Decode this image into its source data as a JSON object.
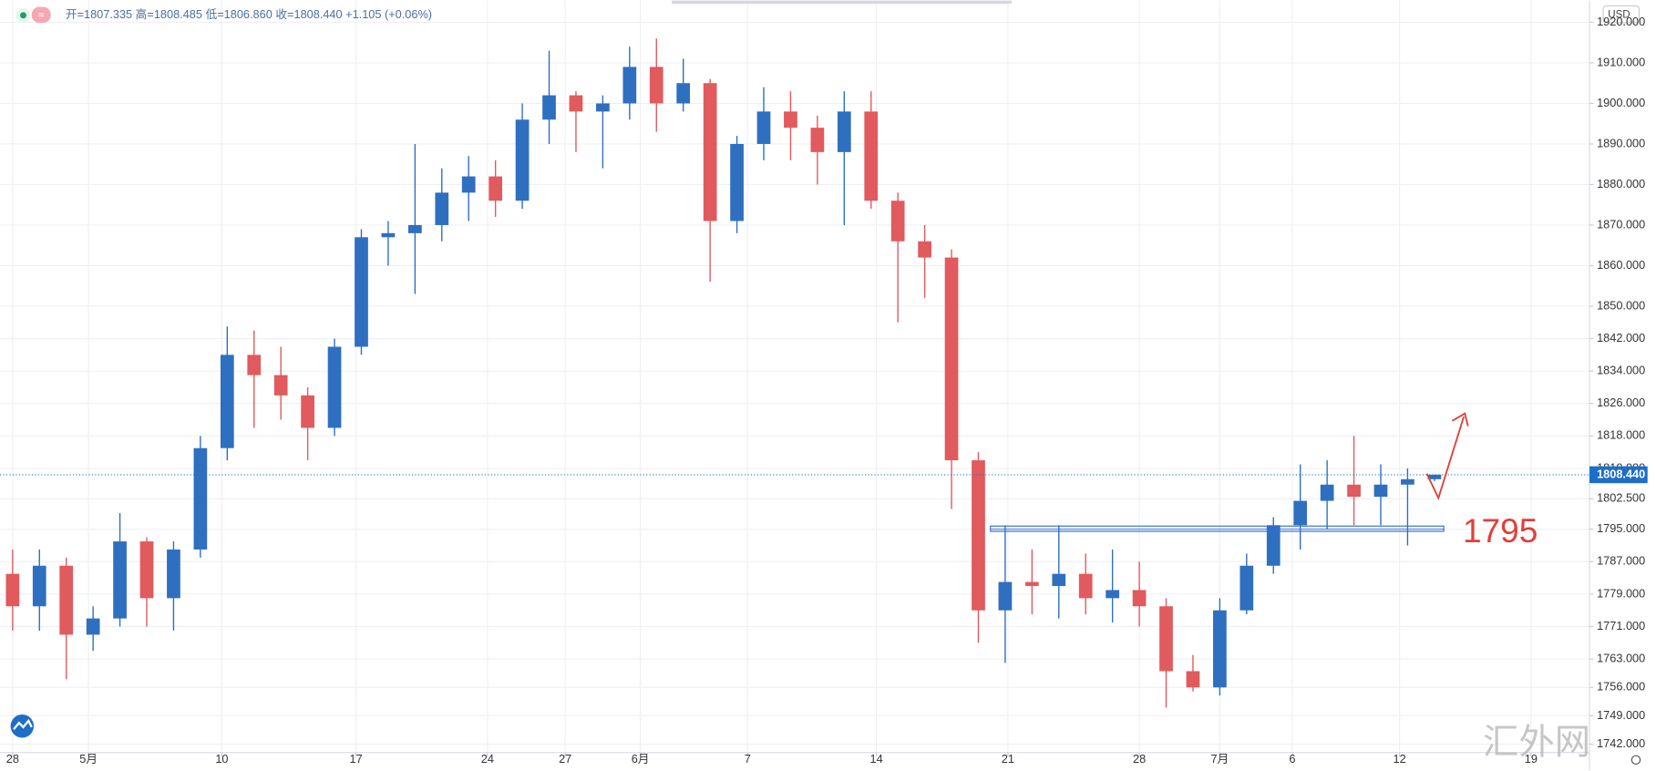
{
  "chart_data": {
    "type": "candlestick",
    "header": "开=1807.335 高=1808.485 低=1806.860 收=1808.440 +1.105 (+0.06%)",
    "currency": "USD",
    "watermark": "汇外网",
    "x": [
      0,
      1,
      2,
      3,
      4,
      5,
      6,
      7,
      8,
      9,
      10,
      11,
      12,
      13,
      14,
      15,
      16,
      17,
      18,
      19,
      20,
      21,
      22,
      23,
      24,
      25,
      26,
      27,
      28,
      29,
      30,
      31,
      32,
      33,
      34,
      35,
      36,
      37,
      38,
      39,
      40,
      41,
      42,
      43,
      44,
      45,
      46,
      47,
      48,
      49,
      50,
      51,
      52,
      53
    ],
    "open": [
      1784,
      1776,
      1786,
      1769,
      1773,
      1792,
      1778,
      1790,
      1815,
      1838,
      1833,
      1828,
      1820,
      1840,
      1867,
      1868,
      1870,
      1878,
      1882,
      1876,
      1896,
      1902,
      1898,
      1900,
      1909,
      1900,
      1905,
      1871,
      1890,
      1898,
      1894,
      1888,
      1898,
      1876,
      1866,
      1862,
      1812,
      1775,
      1782,
      1781,
      1784,
      1778,
      1780,
      1776,
      1760,
      1756,
      1775,
      1786,
      1796,
      1802,
      1806,
      1803,
      1806,
      1807.335
    ],
    "high": [
      1790,
      1790,
      1788,
      1776,
      1799,
      1793,
      1792,
      1818,
      1845,
      1844,
      1840,
      1830,
      1842,
      1869,
      1871,
      1890,
      1884,
      1887,
      1886,
      1900,
      1913,
      1903,
      1902,
      1914,
      1916,
      1911,
      1906,
      1892,
      1904,
      1903,
      1897,
      1903,
      1903,
      1878,
      1870,
      1864,
      1814,
      1796,
      1790,
      1796,
      1789,
      1790,
      1787,
      1778,
      1764,
      1778,
      1789,
      1798,
      1811,
      1812,
      1818,
      1811,
      1810,
      1808.485
    ],
    "low": [
      1770,
      1770,
      1758,
      1765,
      1771,
      1771,
      1770,
      1788,
      1812,
      1820,
      1822,
      1812,
      1818,
      1838,
      1860,
      1853,
      1866,
      1871,
      1872,
      1874,
      1890,
      1888,
      1884,
      1896,
      1893,
      1898,
      1856,
      1868,
      1886,
      1886,
      1880,
      1870,
      1874,
      1846,
      1852,
      1800,
      1767,
      1762,
      1774,
      1773,
      1774,
      1772,
      1771,
      1751,
      1755,
      1754,
      1774,
      1784,
      1790,
      1795,
      1796,
      1796,
      1791,
      1806.86
    ],
    "close": [
      1776,
      1786,
      1769,
      1773,
      1792,
      1778,
      1790,
      1815,
      1838,
      1833,
      1828,
      1820,
      1840,
      1867,
      1868,
      1870,
      1878,
      1882,
      1876,
      1896,
      1902,
      1898,
      1900,
      1909,
      1900,
      1905,
      1871,
      1890,
      1898,
      1894,
      1888,
      1898,
      1876,
      1866,
      1862,
      1812,
      1775,
      1782,
      1781,
      1784,
      1778,
      1780,
      1776,
      1760,
      1756,
      1775,
      1786,
      1796,
      1802,
      1806,
      1803,
      1806,
      1807.335,
      1808.44
    ],
    "up_color": "#2f6fc0",
    "down_color": "#e05a5e",
    "xlim": [
      -0.47,
      58.78
    ],
    "xticks": [
      {
        "value": 0,
        "label": "28"
      },
      {
        "value": 2.83,
        "label": "5月"
      },
      {
        "value": 7.8,
        "label": "10"
      },
      {
        "value": 12.8,
        "label": "17"
      },
      {
        "value": 17.7,
        "label": "24"
      },
      {
        "value": 20.6,
        "label": "27"
      },
      {
        "value": 23.4,
        "label": "6月"
      },
      {
        "value": 27.4,
        "label": "7"
      },
      {
        "value": 32.2,
        "label": "14"
      },
      {
        "value": 37.1,
        "label": "21"
      },
      {
        "value": 42.0,
        "label": "28"
      },
      {
        "value": 45.0,
        "label": "7月"
      },
      {
        "value": 47.7,
        "label": "6"
      },
      {
        "value": 51.7,
        "label": "12"
      },
      {
        "value": 56.6,
        "label": "19"
      }
    ],
    "ylim": [
      1739.95,
      1925.36
    ],
    "yticks": [
      {
        "value": 1920,
        "label": "1920.000"
      },
      {
        "value": 1910,
        "label": "1910.000"
      },
      {
        "value": 1900,
        "label": "1900.000"
      },
      {
        "value": 1890,
        "label": "1890.000"
      },
      {
        "value": 1880,
        "label": "1880.000"
      },
      {
        "value": 1870,
        "label": "1870.000"
      },
      {
        "value": 1860,
        "label": "1860.000"
      },
      {
        "value": 1850,
        "label": "1850.000"
      },
      {
        "value": 1842,
        "label": "1842.000"
      },
      {
        "value": 1834,
        "label": "1834.000"
      },
      {
        "value": 1826,
        "label": "1826.000"
      },
      {
        "value": 1818,
        "label": "1818.000"
      },
      {
        "value": 1810,
        "label": "1810.000"
      },
      {
        "value": 1802.5,
        "label": "1802.500"
      },
      {
        "value": 1795,
        "label": "1795.000"
      },
      {
        "value": 1787,
        "label": "1787.000"
      },
      {
        "value": 1779,
        "label": "1779.000"
      },
      {
        "value": 1771,
        "label": "1771.000"
      },
      {
        "value": 1763,
        "label": "1763.000"
      },
      {
        "value": 1756,
        "label": "1756.000"
      },
      {
        "value": 1749,
        "label": "1749.000"
      },
      {
        "value": 1742,
        "label": "1742.000"
      }
    ],
    "grid": true,
    "last_price": {
      "value": 1808.44,
      "label": "1808.440"
    },
    "annotation": {
      "value": 1795,
      "label": "1795",
      "color": "#e0403a"
    }
  }
}
